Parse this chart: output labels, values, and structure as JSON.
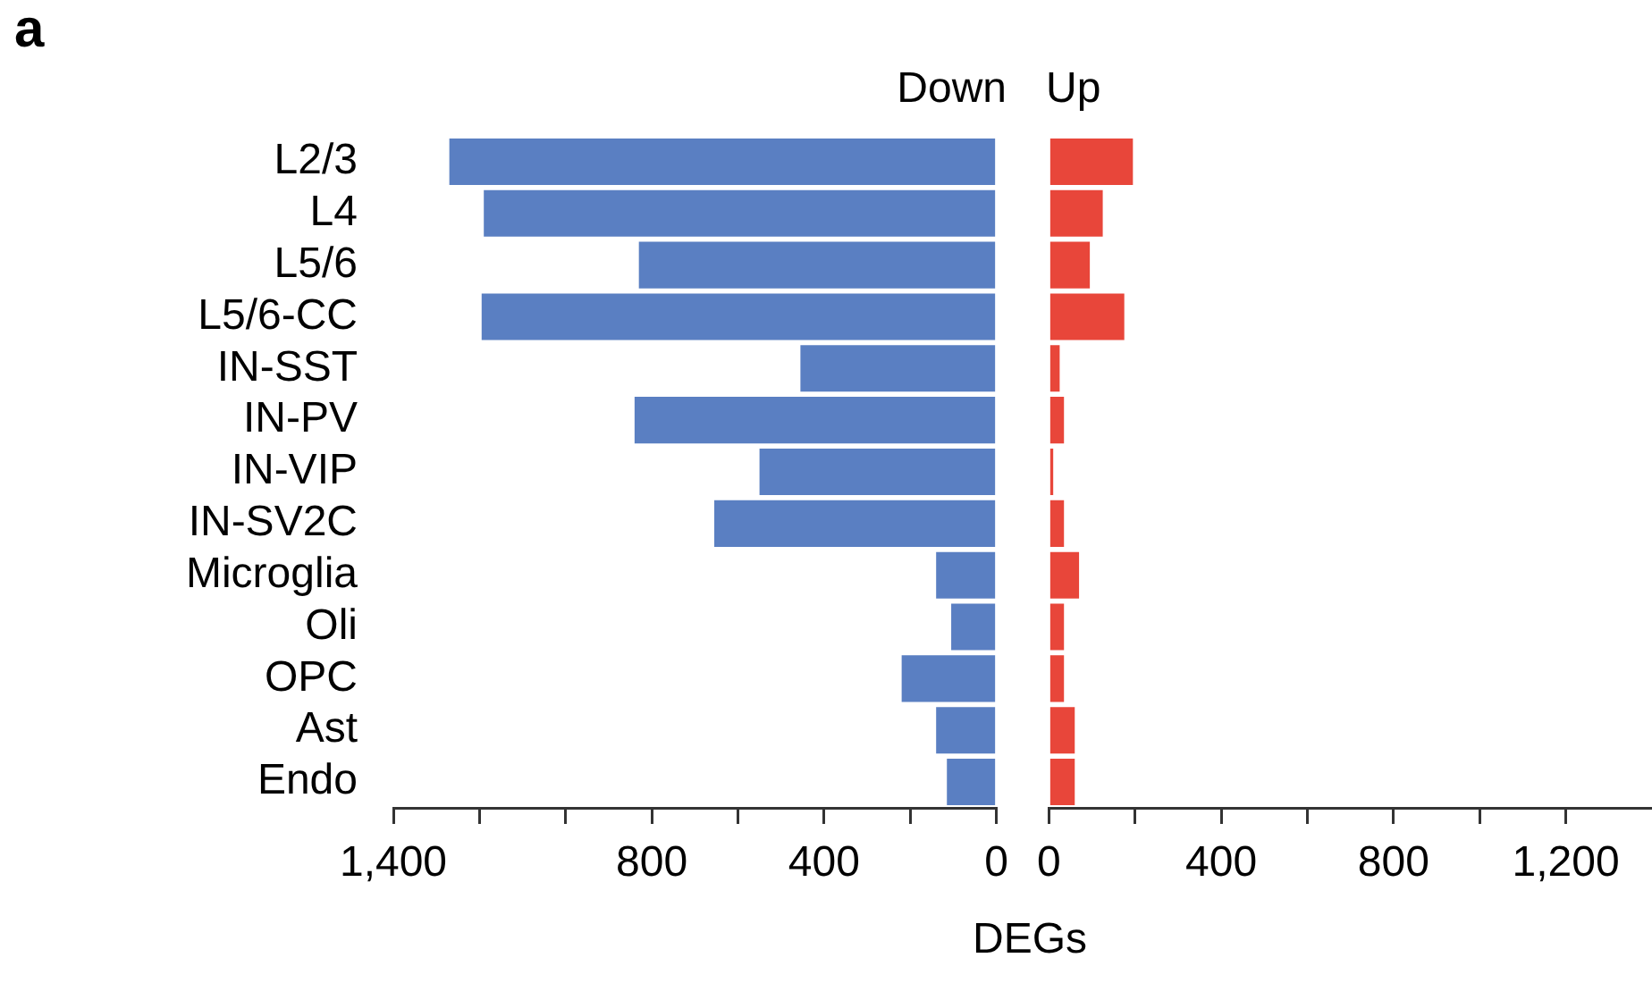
{
  "chart_data": [
    {
      "type": "bar",
      "orientation": "horizontal",
      "title": "Down",
      "xlabel": "DEGs",
      "annotations": [
        "a"
      ],
      "categories": [
        "L2/3",
        "L4",
        "L5/6",
        "L5/6-CC",
        "IN-SST",
        "IN-PV",
        "IN-VIP",
        "IN-SV2C",
        "Microglia",
        "Oli",
        "OPC",
        "Ast",
        "Endo"
      ],
      "values": [
        1270,
        1190,
        830,
        1195,
        455,
        840,
        550,
        655,
        140,
        105,
        220,
        140,
        115
      ],
      "color": "#5a7fc2",
      "xlim": [
        1400,
        0
      ],
      "xticks": [
        {
          "value": 1400,
          "label": "1,400"
        },
        {
          "value": 1200,
          "label": null
        },
        {
          "value": 1000,
          "label": null
        },
        800,
        {
          "value": 600,
          "label": null
        },
        400,
        {
          "value": 200,
          "label": null
        },
        0
      ]
    },
    {
      "type": "bar",
      "orientation": "horizontal",
      "title": "Up",
      "tick_labels": "x",
      "categories": [
        null,
        null,
        null,
        null,
        null,
        null,
        null,
        null,
        null,
        null,
        null,
        null,
        null
      ],
      "values": [
        195,
        125,
        95,
        175,
        25,
        35,
        10,
        35,
        70,
        35,
        35,
        60,
        60
      ],
      "color": "#e8463a",
      "xlim": [
        0,
        1400
      ],
      "xticks": [
        0,
        {
          "value": 200,
          "label": null
        },
        400,
        {
          "value": 600,
          "label": null
        },
        800,
        {
          "value": 1000,
          "label": null
        },
        {
          "value": 1200,
          "label": "1,200"
        }
      ]
    }
  ]
}
